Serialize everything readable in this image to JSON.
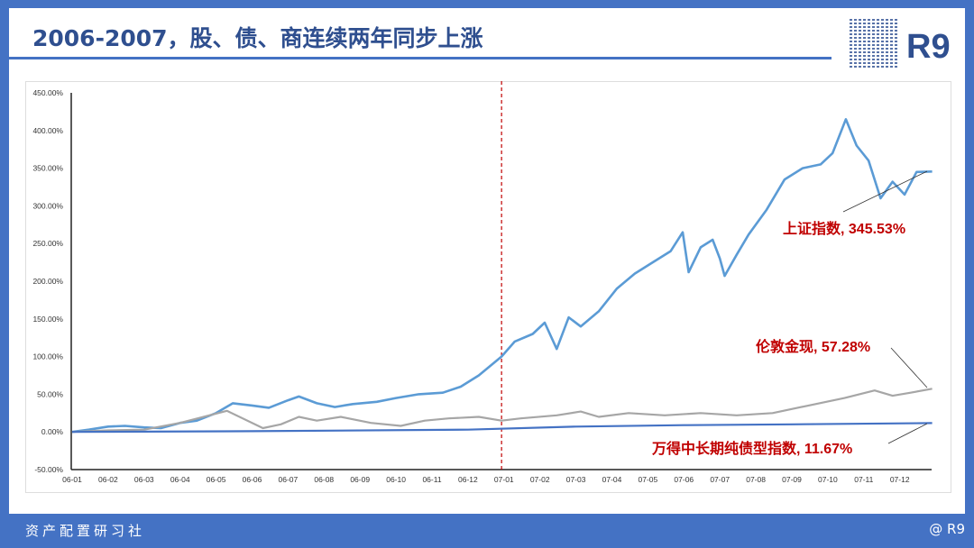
{
  "header": {
    "title": "2006-2007，股、债、商连续两年同步上涨",
    "logo": "R9",
    "qr_icon": "qr-code-icon"
  },
  "footer": {
    "left": "资产配置研习社",
    "right": "@ R9"
  },
  "colors": {
    "shanghai": "#5b9bd5",
    "gold": "#a6a6a6",
    "bond": "#4472c4",
    "marker": "#c00000",
    "annotation": "#c00000"
  },
  "chart_data": {
    "type": "line",
    "ylim": [
      -50,
      450
    ],
    "y_ticks": [
      "450.00%",
      "400.00%",
      "350.00%",
      "300.00%",
      "250.00%",
      "200.00%",
      "150.00%",
      "100.00%",
      "50.00%",
      "0.00%",
      "-50.00%"
    ],
    "y_tick_values": [
      450,
      400,
      350,
      300,
      250,
      200,
      150,
      100,
      50,
      0,
      -50
    ],
    "x_ticks": [
      "06-01",
      "06-02",
      "06-03",
      "06-04",
      "06-05",
      "06-06",
      "06-07",
      "06-08",
      "06-09",
      "06-10",
      "06-11",
      "06-12",
      "07-01",
      "07-02",
      "07-03",
      "07-04",
      "07-05",
      "07-06",
      "07-07",
      "07-08",
      "07-09",
      "07-10",
      "07-11",
      "07-12"
    ],
    "grid": false,
    "marker_line": {
      "date": "2006-12-29",
      "style": "dashed"
    },
    "series": [
      {
        "name": "上证指数",
        "label": "上证指数, 345.53%",
        "color": "#5b9bd5",
        "points": [
          [
            "2006-01-01",
            0
          ],
          [
            "2006-01-15",
            3
          ],
          [
            "2006-02-01",
            7
          ],
          [
            "2006-02-15",
            8
          ],
          [
            "2006-03-01",
            6
          ],
          [
            "2006-03-15",
            5
          ],
          [
            "2006-04-01",
            12
          ],
          [
            "2006-04-15",
            15
          ],
          [
            "2006-05-01",
            25
          ],
          [
            "2006-05-15",
            38
          ],
          [
            "2006-06-01",
            35
          ],
          [
            "2006-06-15",
            32
          ],
          [
            "2006-07-01",
            42
          ],
          [
            "2006-07-10",
            47
          ],
          [
            "2006-07-25",
            38
          ],
          [
            "2006-08-10",
            33
          ],
          [
            "2006-08-25",
            37
          ],
          [
            "2006-09-15",
            40
          ],
          [
            "2006-10-01",
            45
          ],
          [
            "2006-10-20",
            50
          ],
          [
            "2006-11-10",
            52
          ],
          [
            "2006-11-25",
            60
          ],
          [
            "2006-12-10",
            75
          ],
          [
            "2006-12-29",
            100
          ],
          [
            "2007-01-10",
            120
          ],
          [
            "2007-01-25",
            130
          ],
          [
            "2007-02-05",
            145
          ],
          [
            "2007-02-15",
            110
          ],
          [
            "2007-02-25",
            152
          ],
          [
            "2007-03-05",
            140
          ],
          [
            "2007-03-20",
            160
          ],
          [
            "2007-04-05",
            190
          ],
          [
            "2007-04-20",
            210
          ],
          [
            "2007-05-05",
            225
          ],
          [
            "2007-05-20",
            240
          ],
          [
            "2007-05-30",
            265
          ],
          [
            "2007-06-05",
            212
          ],
          [
            "2007-06-15",
            245
          ],
          [
            "2007-06-25",
            255
          ],
          [
            "2007-07-01",
            230
          ],
          [
            "2007-07-05",
            207
          ],
          [
            "2007-07-15",
            235
          ],
          [
            "2007-07-25",
            262
          ],
          [
            "2007-08-10",
            295
          ],
          [
            "2007-08-25",
            335
          ],
          [
            "2007-09-10",
            350
          ],
          [
            "2007-09-25",
            355
          ],
          [
            "2007-10-05",
            370
          ],
          [
            "2007-10-16",
            415
          ],
          [
            "2007-10-25",
            380
          ],
          [
            "2007-11-05",
            360
          ],
          [
            "2007-11-15",
            310
          ],
          [
            "2007-11-25",
            332
          ],
          [
            "2007-12-05",
            315
          ],
          [
            "2007-12-15",
            345
          ],
          [
            "2007-12-28",
            345.53
          ]
        ]
      },
      {
        "name": "伦敦金现",
        "label": "伦敦金现, 57.28%",
        "color": "#a6a6a6",
        "points": [
          [
            "2006-01-01",
            0
          ],
          [
            "2006-02-01",
            2
          ],
          [
            "2006-03-01",
            3
          ],
          [
            "2006-04-01",
            12
          ],
          [
            "2006-05-10",
            28
          ],
          [
            "2006-06-10",
            5
          ],
          [
            "2006-06-25",
            10
          ],
          [
            "2006-07-10",
            20
          ],
          [
            "2006-07-25",
            15
          ],
          [
            "2006-08-15",
            20
          ],
          [
            "2006-09-10",
            12
          ],
          [
            "2006-10-05",
            8
          ],
          [
            "2006-10-25",
            15
          ],
          [
            "2006-11-15",
            18
          ],
          [
            "2006-12-10",
            20
          ],
          [
            "2006-12-29",
            15
          ],
          [
            "2007-01-15",
            18
          ],
          [
            "2007-02-15",
            22
          ],
          [
            "2007-03-05",
            27
          ],
          [
            "2007-03-20",
            20
          ],
          [
            "2007-04-15",
            25
          ],
          [
            "2007-05-15",
            22
          ],
          [
            "2007-06-15",
            25
          ],
          [
            "2007-07-15",
            22
          ],
          [
            "2007-08-15",
            25
          ],
          [
            "2007-09-15",
            35
          ],
          [
            "2007-10-15",
            45
          ],
          [
            "2007-11-10",
            55
          ],
          [
            "2007-11-25",
            48
          ],
          [
            "2007-12-10",
            52
          ],
          [
            "2007-12-28",
            57.28
          ]
        ]
      },
      {
        "name": "万得中长期纯债型指数",
        "label": "万得中长期纯债型指数, 11.67%",
        "color": "#4472c4",
        "points": [
          [
            "2006-01-01",
            0
          ],
          [
            "2006-06-01",
            1
          ],
          [
            "2006-12-01",
            3
          ],
          [
            "2007-03-01",
            7
          ],
          [
            "2007-06-01",
            9
          ],
          [
            "2007-09-01",
            10
          ],
          [
            "2007-12-28",
            11.67
          ]
        ]
      }
    ]
  }
}
